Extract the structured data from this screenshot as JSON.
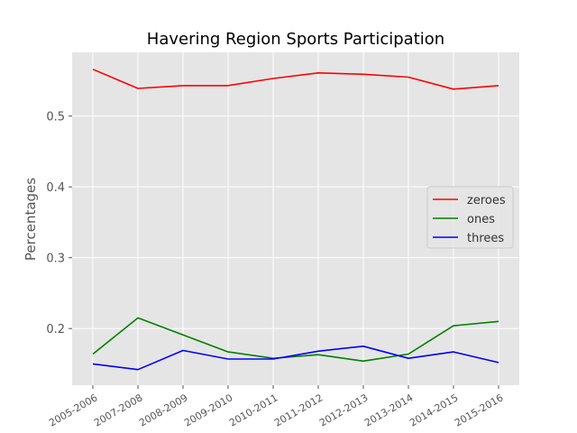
{
  "chart_data": {
    "type": "line",
    "title": "Havering Region Sports Participation",
    "xlabel": "",
    "ylabel": "Percentages",
    "categories": [
      "2005-2006",
      "2007-2008",
      "2008-2009",
      "2009-2010",
      "2010-2011",
      "2011-2012",
      "2012-2013",
      "2013-2014",
      "2014-2015",
      "2015-2016"
    ],
    "ylim": [
      0.12,
      0.59
    ],
    "yticks": [
      "0.2",
      "0.3",
      "0.4",
      "0.5"
    ],
    "grid": true,
    "legend_position": "center-right",
    "series": [
      {
        "name": "zeroes",
        "color": "#ff0000",
        "values": [
          0.566,
          0.539,
          0.543,
          0.543,
          0.553,
          0.561,
          0.559,
          0.555,
          0.538,
          0.543
        ]
      },
      {
        "name": "ones",
        "color": "#008000",
        "values": [
          0.164,
          0.215,
          0.191,
          0.167,
          0.158,
          0.163,
          0.154,
          0.164,
          0.204,
          0.21
        ]
      },
      {
        "name": "threes",
        "color": "#0000ff",
        "values": [
          0.15,
          0.142,
          0.169,
          0.157,
          0.157,
          0.168,
          0.175,
          0.158,
          0.167,
          0.152
        ]
      }
    ]
  }
}
